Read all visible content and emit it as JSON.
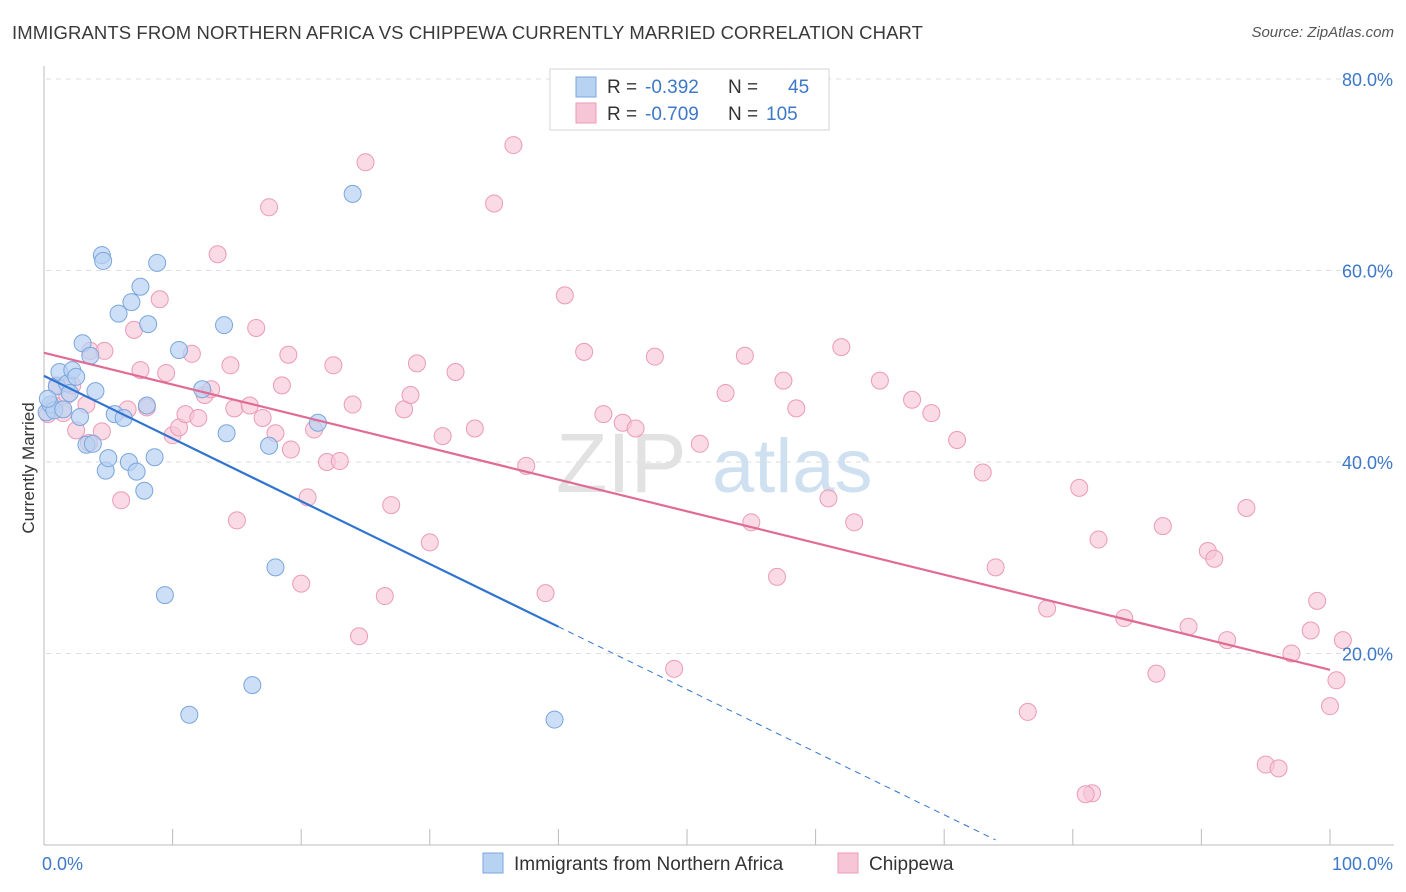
{
  "header": {
    "title": "IMMIGRANTS FROM NORTHERN AFRICA VS CHIPPEWA CURRENTLY MARRIED CORRELATION CHART",
    "source": "Source: ZipAtlas.com"
  },
  "watermark": {
    "part1": "ZIP",
    "part2": "atlas"
  },
  "colors": {
    "blue_fill": "#b8d2f2",
    "blue_stroke": "#7aa6dd",
    "blue_line": "#2f74d0",
    "pink_fill": "#f7c6d6",
    "pink_stroke": "#ec9bb6",
    "pink_line": "#e06b94",
    "tick_label": "#3d78c9",
    "grid": "#dedede"
  },
  "legend_top": {
    "rows": [
      {
        "r_label": "R =",
        "r_value": "-0.392",
        "n_label": "N =",
        "n_value": "45"
      },
      {
        "r_label": "R =",
        "r_value": "-0.709",
        "n_label": "N =",
        "n_value": "105"
      }
    ]
  },
  "legend_bottom": {
    "items": [
      "Immigrants from Northern Africa",
      "Chippewa"
    ]
  },
  "chart_data": {
    "type": "scatter",
    "title": "IMMIGRANTS FROM NORTHERN AFRICA VS CHIPPEWA CURRENTLY MARRIED CORRELATION CHART",
    "xlabel": "",
    "ylabel": "Currently Married",
    "xlim": [
      0,
      100
    ],
    "ylim": [
      0,
      80
    ],
    "x_tick_labels": [
      "0.0%",
      "100.0%"
    ],
    "y_tick_labels": [
      "20.0%",
      "40.0%",
      "60.0%",
      "80.0%"
    ],
    "y_ticks": [
      20,
      40,
      60,
      80
    ],
    "grid": true,
    "legend_position": "bottom",
    "series": [
      {
        "name": "Immigrants from Northern Africa",
        "color": "#b8d2f2",
        "stats": {
          "R": -0.392,
          "N": 45
        },
        "trend": {
          "x0": 0,
          "y0": 49.0,
          "x1": 40.0,
          "y1": 22.8,
          "dashed_to_x": 74.0
        },
        "points": [
          [
            0.2,
            45.2
          ],
          [
            0.5,
            46.0
          ],
          [
            0.8,
            45.4
          ],
          [
            1.0,
            47.9
          ],
          [
            1.2,
            49.4
          ],
          [
            1.5,
            45.5
          ],
          [
            1.8,
            48.2
          ],
          [
            2.0,
            47.2
          ],
          [
            2.2,
            49.6
          ],
          [
            2.5,
            48.9
          ],
          [
            2.8,
            44.7
          ],
          [
            3.0,
            52.4
          ],
          [
            3.3,
            41.8
          ],
          [
            3.6,
            51.1
          ],
          [
            3.8,
            41.9
          ],
          [
            4.0,
            47.4
          ],
          [
            4.5,
            61.6
          ],
          [
            4.6,
            61.0
          ],
          [
            4.8,
            39.1
          ],
          [
            5.0,
            40.4
          ],
          [
            5.5,
            45.0
          ],
          [
            5.8,
            55.5
          ],
          [
            6.2,
            44.6
          ],
          [
            6.6,
            40.0
          ],
          [
            6.8,
            56.7
          ],
          [
            7.2,
            39.0
          ],
          [
            7.5,
            58.3
          ],
          [
            7.8,
            37.0
          ],
          [
            8.0,
            45.9
          ],
          [
            8.1,
            54.4
          ],
          [
            8.6,
            40.5
          ],
          [
            8.8,
            60.8
          ],
          [
            9.4,
            26.1
          ],
          [
            10.5,
            51.7
          ],
          [
            11.3,
            13.6
          ],
          [
            12.3,
            47.6
          ],
          [
            14.0,
            54.3
          ],
          [
            14.2,
            43.0
          ],
          [
            16.2,
            16.7
          ],
          [
            17.5,
            41.7
          ],
          [
            18.0,
            29.0
          ],
          [
            21.3,
            44.1
          ],
          [
            24.0,
            68.0
          ],
          [
            39.7,
            13.1
          ],
          [
            0.3,
            46.6
          ]
        ]
      },
      {
        "name": "Chippewa",
        "color": "#f7c6d6",
        "stats": {
          "R": -0.709,
          "N": 105
        },
        "trend": {
          "x0": 0,
          "y0": 51.4,
          "x1": 100,
          "y1": 18.3
        },
        "points": [
          [
            0.3,
            45.0
          ],
          [
            0.8,
            45.9
          ],
          [
            1.0,
            48.0
          ],
          [
            1.5,
            45.1
          ],
          [
            1.8,
            47.0
          ],
          [
            2.2,
            48.0
          ],
          [
            2.5,
            43.3
          ],
          [
            3.3,
            46.0
          ],
          [
            3.5,
            42.0
          ],
          [
            3.6,
            51.6
          ],
          [
            4.5,
            43.2
          ],
          [
            4.7,
            51.6
          ],
          [
            6.0,
            36.0
          ],
          [
            6.5,
            45.5
          ],
          [
            7.0,
            53.8
          ],
          [
            7.5,
            49.6
          ],
          [
            8.0,
            45.7
          ],
          [
            9.0,
            57.0
          ],
          [
            9.5,
            49.3
          ],
          [
            10.0,
            42.8
          ],
          [
            10.5,
            43.6
          ],
          [
            11.0,
            45.0
          ],
          [
            11.5,
            51.3
          ],
          [
            12.0,
            44.6
          ],
          [
            12.5,
            47.0
          ],
          [
            13.0,
            47.6
          ],
          [
            13.5,
            61.7
          ],
          [
            14.5,
            50.1
          ],
          [
            14.8,
            45.6
          ],
          [
            15.0,
            33.9
          ],
          [
            16.0,
            45.9
          ],
          [
            16.5,
            54.0
          ],
          [
            17.0,
            44.6
          ],
          [
            17.5,
            66.6
          ],
          [
            18.0,
            43.0
          ],
          [
            18.5,
            48.0
          ],
          [
            19.0,
            51.2
          ],
          [
            19.2,
            41.3
          ],
          [
            20.0,
            27.3
          ],
          [
            20.5,
            36.3
          ],
          [
            21.0,
            43.4
          ],
          [
            22.0,
            40.0
          ],
          [
            22.5,
            50.1
          ],
          [
            23.0,
            40.1
          ],
          [
            24.0,
            46.0
          ],
          [
            24.5,
            21.8
          ],
          [
            25.0,
            71.3
          ],
          [
            26.5,
            26.0
          ],
          [
            27.0,
            35.5
          ],
          [
            28.0,
            45.5
          ],
          [
            28.5,
            47.0
          ],
          [
            29.0,
            50.3
          ],
          [
            30.0,
            31.6
          ],
          [
            31.0,
            42.7
          ],
          [
            32.0,
            49.4
          ],
          [
            33.5,
            43.5
          ],
          [
            35.0,
            67.0
          ],
          [
            36.5,
            73.1
          ],
          [
            37.5,
            39.6
          ],
          [
            39.0,
            26.3
          ],
          [
            40.5,
            57.4
          ],
          [
            42.0,
            51.5
          ],
          [
            43.5,
            45.0
          ],
          [
            45.0,
            44.1
          ],
          [
            46.0,
            43.5
          ],
          [
            47.5,
            51.0
          ],
          [
            49.0,
            18.4
          ],
          [
            51.0,
            41.9
          ],
          [
            53.0,
            47.2
          ],
          [
            54.5,
            51.1
          ],
          [
            55.0,
            33.7
          ],
          [
            57.0,
            28.0
          ],
          [
            57.5,
            48.5
          ],
          [
            58.5,
            45.6
          ],
          [
            61.0,
            36.2
          ],
          [
            62.0,
            52.0
          ],
          [
            63.0,
            33.7
          ],
          [
            65.0,
            48.5
          ],
          [
            67.5,
            46.5
          ],
          [
            69.0,
            45.1
          ],
          [
            71.0,
            42.3
          ],
          [
            73.0,
            38.9
          ],
          [
            74.0,
            29.0
          ],
          [
            76.5,
            13.9
          ],
          [
            78.0,
            24.7
          ],
          [
            80.5,
            37.3
          ],
          [
            81.5,
            5.4
          ],
          [
            81.0,
            5.3
          ],
          [
            82.0,
            31.9
          ],
          [
            84.0,
            23.7
          ],
          [
            86.5,
            17.9
          ],
          [
            87.0,
            33.3
          ],
          [
            89.0,
            22.8
          ],
          [
            90.5,
            30.7
          ],
          [
            91.0,
            29.9
          ],
          [
            92.0,
            21.4
          ],
          [
            93.5,
            35.2
          ],
          [
            95.0,
            8.4
          ],
          [
            96.0,
            8.0
          ],
          [
            97.0,
            20.0
          ],
          [
            98.5,
            22.4
          ],
          [
            99.0,
            25.5
          ],
          [
            100.0,
            14.5
          ],
          [
            100.5,
            17.2
          ],
          [
            101.0,
            21.4
          ]
        ]
      }
    ]
  }
}
